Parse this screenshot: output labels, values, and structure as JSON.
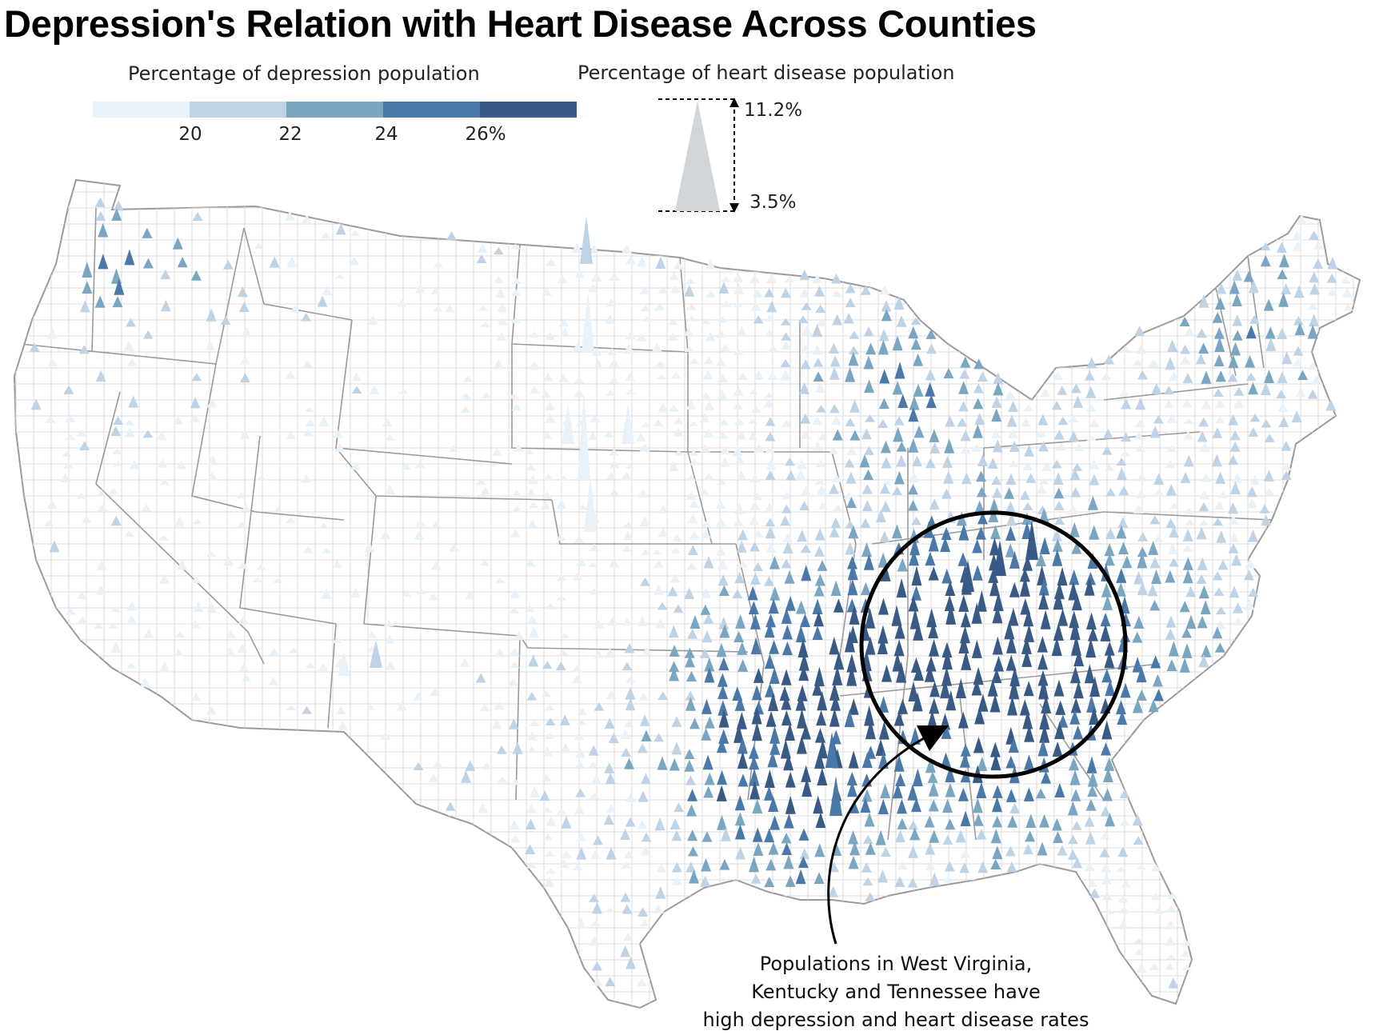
{
  "title": "Depression's Relation with Heart Disease Across Counties",
  "color_legend": {
    "label": "Percentage of depression population",
    "ticks": [
      "20",
      "22",
      "24",
      "26%"
    ],
    "bins": [
      "#e9f2f9",
      "#bfd3e6",
      "#7aa6c2",
      "#4a78a8",
      "#3a5a86"
    ]
  },
  "size_legend": {
    "label": "Percentage of heart disease population",
    "max_label": "11.2%",
    "min_label": "3.5%"
  },
  "annotation": {
    "lines": [
      "Populations in West Virginia,",
      "Kentucky and Tennessee have",
      "high depression and heart disease rates"
    ]
  },
  "colors": {
    "state_border": "#9a9a9a",
    "county_border": "#d6d6d6",
    "highlight_circle": "#000000",
    "size_triangle": "#d3d6d9"
  }
}
